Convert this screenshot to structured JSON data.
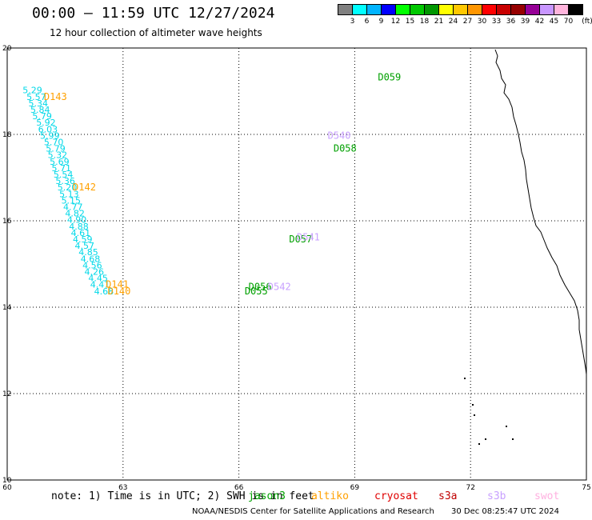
{
  "header": {
    "title": "00:00 – 11:59 UTC 12/27/2024",
    "subtitle": "12 hour collection of altimeter wave heights"
  },
  "colorbar": {
    "labels": [
      "3",
      "6",
      "9",
      "12",
      "15",
      "18",
      "21",
      "24",
      "27",
      "30",
      "33",
      "36",
      "39",
      "42",
      "45",
      "70"
    ],
    "unit": "(ft)",
    "colors": [
      "#808080",
      "#00ffff",
      "#00b4ff",
      "#0000ff",
      "#00ff00",
      "#00c800",
      "#009600",
      "#ffff00",
      "#ffc800",
      "#ff9600",
      "#ff0000",
      "#c80000",
      "#960000",
      "#960096",
      "#c896ff",
      "#ffb4dc",
      "#000000"
    ]
  },
  "footer": {
    "note": "note: 1) Time is in UTC; 2) SWH is in feet",
    "satellites": [
      {
        "name": "jason3",
        "color": "#00a000"
      },
      {
        "name": "altiko",
        "color": "#ffa000"
      },
      {
        "name": "cryosat",
        "color": "#e00000"
      },
      {
        "name": "s3a",
        "color": "#c00000"
      },
      {
        "name": "s3b",
        "color": "#c8a0ff"
      },
      {
        "name": "swot",
        "color": "#ffb0e0"
      }
    ],
    "credit": "NOAA/NESDIS Center for Satellite Applications and Research",
    "timestamp": "30 Dec 08:25:47 UTC 2024"
  },
  "chart_data": {
    "type": "scatter",
    "title": "00:00 – 11:59 UTC 12/27/2024",
    "subtitle": "12 hour collection of altimeter wave heights",
    "xlim": [
      60,
      75
    ],
    "ylim": [
      10,
      20
    ],
    "xticks": [
      "60",
      "63",
      "66",
      "69",
      "72",
      "75"
    ],
    "yticks": [
      "10",
      "12",
      "14",
      "16",
      "18",
      "20"
    ],
    "grid": true,
    "value_color": "#00d8e8",
    "tracks": [
      {
        "name": "track-west",
        "values": [
          {
            "x": 60.4,
            "y": 18.95,
            "v": "5.29"
          },
          {
            "x": 60.5,
            "y": 18.8,
            "v": "5.57"
          },
          {
            "x": 60.55,
            "y": 18.65,
            "v": "5.34"
          },
          {
            "x": 60.6,
            "y": 18.5,
            "v": "5.84"
          },
          {
            "x": 60.65,
            "y": 18.35,
            "v": "5.79"
          },
          {
            "x": 60.75,
            "y": 18.2,
            "v": "5.92"
          },
          {
            "x": 60.8,
            "y": 18.05,
            "v": "6.03"
          },
          {
            "x": 60.85,
            "y": 17.9,
            "v": "5.99"
          },
          {
            "x": 60.95,
            "y": 17.75,
            "v": "5.70"
          },
          {
            "x": 61.0,
            "y": 17.6,
            "v": "5.79"
          },
          {
            "x": 61.05,
            "y": 17.45,
            "v": "5.32"
          },
          {
            "x": 61.1,
            "y": 17.3,
            "v": "5.69"
          },
          {
            "x": 61.15,
            "y": 17.15,
            "v": "5.71"
          },
          {
            "x": 61.2,
            "y": 17.0,
            "v": "5.54"
          },
          {
            "x": 61.25,
            "y": 16.85,
            "v": "5.36"
          },
          {
            "x": 61.3,
            "y": 16.7,
            "v": "5.20"
          },
          {
            "x": 61.35,
            "y": 16.55,
            "v": "5.13"
          },
          {
            "x": 61.4,
            "y": 16.4,
            "v": "5.15"
          },
          {
            "x": 61.45,
            "y": 16.25,
            "v": "4.77"
          },
          {
            "x": 61.5,
            "y": 16.1,
            "v": "4.82"
          },
          {
            "x": 61.55,
            "y": 15.95,
            "v": "4.90"
          },
          {
            "x": 61.6,
            "y": 15.8,
            "v": "4.88"
          },
          {
            "x": 61.65,
            "y": 15.65,
            "v": "4.61"
          },
          {
            "x": 61.7,
            "y": 15.5,
            "v": "4.59"
          },
          {
            "x": 61.75,
            "y": 15.35,
            "v": "4.57"
          },
          {
            "x": 61.85,
            "y": 15.2,
            "v": "4.85"
          },
          {
            "x": 61.9,
            "y": 15.05,
            "v": "4.68"
          },
          {
            "x": 61.95,
            "y": 14.9,
            "v": "4.56"
          },
          {
            "x": 62.0,
            "y": 14.75,
            "v": "4.26"
          },
          {
            "x": 62.1,
            "y": 14.6,
            "v": "4.45"
          },
          {
            "x": 62.15,
            "y": 14.45,
            "v": "4.41"
          },
          {
            "x": 62.25,
            "y": 14.3,
            "v": "4.68"
          }
        ]
      }
    ],
    "pass_labels": [
      {
        "x": 60.95,
        "y": 18.8,
        "text": "D143",
        "color": "#ffa000"
      },
      {
        "x": 61.7,
        "y": 16.7,
        "text": "D142",
        "color": "#ffa000"
      },
      {
        "x": 62.55,
        "y": 14.45,
        "text": "D141",
        "color": "#ffa000"
      },
      {
        "x": 62.6,
        "y": 14.3,
        "text": "D140",
        "color": "#ffa000"
      },
      {
        "x": 69.6,
        "y": 19.25,
        "text": "D059",
        "color": "#00a000"
      },
      {
        "x": 68.45,
        "y": 17.6,
        "text": "D058",
        "color": "#00a000"
      },
      {
        "x": 67.3,
        "y": 15.5,
        "text": "D057",
        "color": "#00a000"
      },
      {
        "x": 66.25,
        "y": 14.4,
        "text": "D056",
        "color": "#00a000"
      },
      {
        "x": 66.15,
        "y": 14.3,
        "text": "D055",
        "color": "#00a000"
      },
      {
        "x": 68.3,
        "y": 17.9,
        "text": "D540",
        "color": "#c8a0ff"
      },
      {
        "x": 67.5,
        "y": 15.55,
        "text": "D541",
        "color": "#c8a0ff"
      },
      {
        "x": 66.75,
        "y": 14.4,
        "text": "D542",
        "color": "#c8a0ff"
      }
    ]
  }
}
